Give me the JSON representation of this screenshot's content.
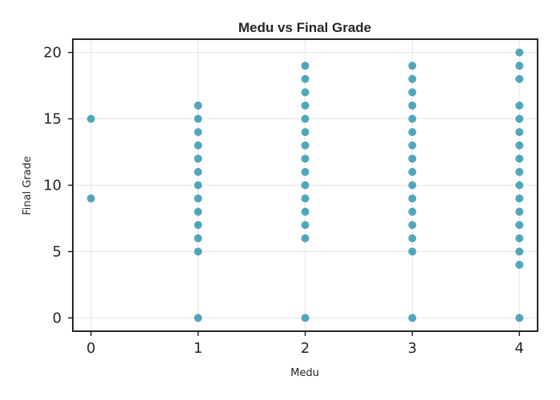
{
  "chart_data": {
    "type": "scatter",
    "title": "Medu vs Final Grade",
    "xlabel": "Medu",
    "ylabel": "Final Grade",
    "xlim": [
      -0.17,
      4.17
    ],
    "ylim": [
      -1,
      21
    ],
    "xticks": [
      0,
      1,
      2,
      3,
      4
    ],
    "yticks": [
      0,
      5,
      10,
      15,
      20
    ],
    "grid": true,
    "point_color": "#1a8ba7",
    "series": [
      {
        "points": [
          [
            0,
            15
          ],
          [
            0,
            9
          ],
          [
            1,
            16
          ],
          [
            1,
            15
          ],
          [
            1,
            14
          ],
          [
            1,
            13
          ],
          [
            1,
            12
          ],
          [
            1,
            11
          ],
          [
            1,
            10
          ],
          [
            1,
            9
          ],
          [
            1,
            8
          ],
          [
            1,
            7
          ],
          [
            1,
            6
          ],
          [
            1,
            5
          ],
          [
            1,
            0
          ],
          [
            2,
            19
          ],
          [
            2,
            18
          ],
          [
            2,
            17
          ],
          [
            2,
            16
          ],
          [
            2,
            15
          ],
          [
            2,
            14
          ],
          [
            2,
            13
          ],
          [
            2,
            12
          ],
          [
            2,
            11
          ],
          [
            2,
            10
          ],
          [
            2,
            9
          ],
          [
            2,
            8
          ],
          [
            2,
            7
          ],
          [
            2,
            6
          ],
          [
            2,
            0
          ],
          [
            3,
            19
          ],
          [
            3,
            18
          ],
          [
            3,
            17
          ],
          [
            3,
            16
          ],
          [
            3,
            15
          ],
          [
            3,
            14
          ],
          [
            3,
            13
          ],
          [
            3,
            12
          ],
          [
            3,
            11
          ],
          [
            3,
            10
          ],
          [
            3,
            9
          ],
          [
            3,
            8
          ],
          [
            3,
            7
          ],
          [
            3,
            6
          ],
          [
            3,
            5
          ],
          [
            3,
            0
          ],
          [
            4,
            20
          ],
          [
            4,
            19
          ],
          [
            4,
            18
          ],
          [
            4,
            16
          ],
          [
            4,
            15
          ],
          [
            4,
            14
          ],
          [
            4,
            13
          ],
          [
            4,
            12
          ],
          [
            4,
            11
          ],
          [
            4,
            10
          ],
          [
            4,
            9
          ],
          [
            4,
            8
          ],
          [
            4,
            7
          ],
          [
            4,
            6
          ],
          [
            4,
            5
          ],
          [
            4,
            4
          ],
          [
            4,
            0
          ]
        ]
      }
    ]
  }
}
